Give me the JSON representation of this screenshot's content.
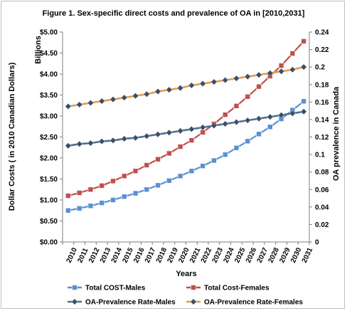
{
  "chart_data": {
    "type": "line",
    "title": "Figure 1. Sex-specific direct costs and prevalence of OA in [2010,2031]",
    "xlabel": "Years",
    "ylabel_left": "Dollar Costs ( in 2010 Canadian Dollars)",
    "ylabel_left_unit": "Billions",
    "ylabel_right": "OA prevalence in Canada",
    "categories": [
      "2010",
      "2011",
      "2012",
      "2013",
      "2014",
      "2015",
      "2016",
      "2017",
      "2018",
      "2019",
      "2020",
      "2021",
      "2022",
      "2023",
      "2024",
      "2025",
      "2026",
      "2027",
      "2028",
      "2029",
      "2030",
      "2031"
    ],
    "y_left": {
      "min": 0,
      "max": 5,
      "step": 0.5,
      "tick_labels": [
        "$0.00",
        "$0.50",
        "$1.00",
        "$1.50",
        "$2.00",
        "$2.50",
        "$3.00",
        "$3.50",
        "$4.00",
        "$4.50",
        "$5.00"
      ]
    },
    "y_right": {
      "min": 0,
      "max": 0.24,
      "step": 0.02,
      "tick_labels": [
        "0",
        "0.02",
        "0.04",
        "0.06",
        "0.08",
        "0.1",
        "0.12",
        "0.14",
        "0.16",
        "0.18",
        "0.2",
        "0.22",
        "0.24"
      ]
    },
    "grid": false,
    "legend_position": "bottom",
    "series": [
      {
        "name": "Total COST-Males",
        "axis": "left",
        "marker": "square",
        "color": "#5b8fd0",
        "values": [
          0.75,
          0.8,
          0.86,
          0.93,
          1.0,
          1.08,
          1.16,
          1.25,
          1.35,
          1.46,
          1.57,
          1.69,
          1.81,
          1.94,
          2.08,
          2.24,
          2.4,
          2.57,
          2.74,
          2.93,
          3.14,
          3.35
        ]
      },
      {
        "name": "Total Cost-Females",
        "axis": "left",
        "marker": "square",
        "color": "#c0504d",
        "values": [
          1.1,
          1.17,
          1.25,
          1.34,
          1.45,
          1.57,
          1.69,
          1.83,
          1.97,
          2.11,
          2.27,
          2.42,
          2.61,
          2.81,
          3.03,
          3.24,
          3.46,
          3.7,
          3.95,
          4.2,
          4.49,
          4.78
        ]
      },
      {
        "name": "OA-Prevalence Rate-Males",
        "axis": "right",
        "marker": "diamond",
        "color": "#4a6e93",
        "values": [
          0.11,
          0.112,
          0.113,
          0.115,
          0.116,
          0.118,
          0.119,
          0.121,
          0.123,
          0.125,
          0.127,
          0.129,
          0.131,
          0.133,
          0.135,
          0.137,
          0.139,
          0.141,
          0.143,
          0.145,
          0.147,
          0.149
        ]
      },
      {
        "name": "OA-Prevalence Rate-Females",
        "axis": "right",
        "marker": "diamond",
        "color": "#e59a45",
        "values": [
          0.155,
          0.157,
          0.159,
          0.161,
          0.163,
          0.165,
          0.167,
          0.169,
          0.172,
          0.174,
          0.176,
          0.179,
          0.181,
          0.183,
          0.185,
          0.187,
          0.189,
          0.191,
          0.193,
          0.195,
          0.197,
          0.2
        ]
      }
    ]
  }
}
